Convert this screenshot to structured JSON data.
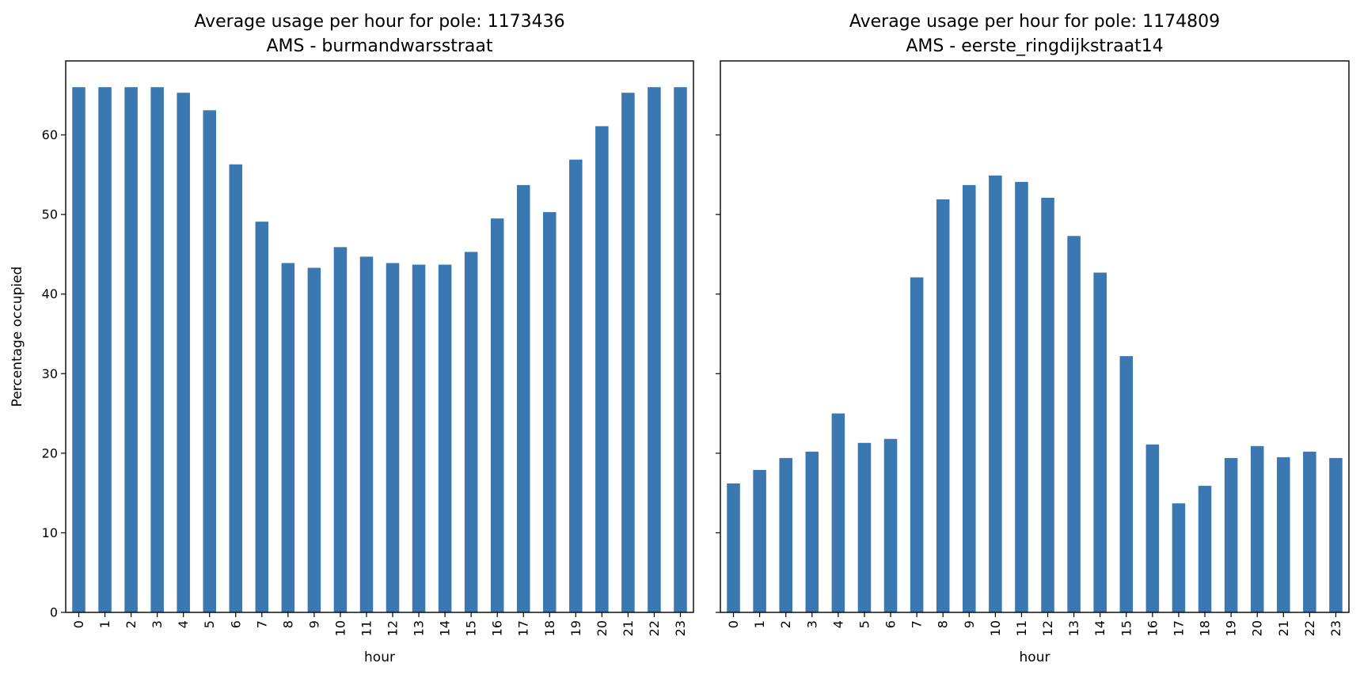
{
  "chart_data": [
    {
      "type": "bar",
      "title": "Average usage per hour for pole: 1173436",
      "subtitle": "AMS - burmandwarsstraat",
      "xlabel": "hour",
      "ylabel": "Percentage occupied",
      "categories": [
        "0",
        "1",
        "2",
        "3",
        "4",
        "5",
        "6",
        "7",
        "8",
        "9",
        "10",
        "11",
        "12",
        "13",
        "14",
        "15",
        "16",
        "17",
        "18",
        "19",
        "20",
        "21",
        "22",
        "23"
      ],
      "values": [
        66.0,
        66.0,
        66.0,
        66.0,
        65.3,
        63.1,
        56.3,
        49.1,
        43.9,
        43.3,
        45.9,
        44.7,
        43.9,
        43.7,
        43.7,
        45.3,
        49.5,
        53.7,
        50.3,
        56.9,
        61.1,
        65.3,
        66.0,
        66.0
      ],
      "yticks": [
        0,
        10,
        20,
        30,
        40,
        50,
        60
      ],
      "ylim": [
        0,
        69.3
      ],
      "color": "#3b78b1",
      "grid": false,
      "legend": false
    },
    {
      "type": "bar",
      "title": "Average usage per hour for pole: 1174809",
      "subtitle": "AMS - eerste_ringdijkstraat14",
      "xlabel": "hour",
      "ylabel": "",
      "categories": [
        "0",
        "1",
        "2",
        "3",
        "4",
        "5",
        "6",
        "7",
        "8",
        "9",
        "10",
        "11",
        "12",
        "13",
        "14",
        "15",
        "16",
        "17",
        "18",
        "19",
        "20",
        "21",
        "22",
        "23"
      ],
      "values": [
        16.2,
        17.9,
        19.4,
        20.2,
        25.0,
        21.3,
        21.8,
        42.1,
        51.9,
        53.7,
        54.9,
        54.1,
        52.1,
        47.3,
        42.7,
        32.2,
        21.1,
        13.7,
        15.9,
        19.4,
        20.9,
        19.5,
        20.2,
        19.4
      ],
      "yticks": [
        0,
        10,
        20,
        30,
        40,
        50,
        60
      ],
      "ylim": [
        0,
        69.3
      ],
      "color": "#3b78b1",
      "grid": false,
      "legend": false,
      "sharey": true
    }
  ]
}
